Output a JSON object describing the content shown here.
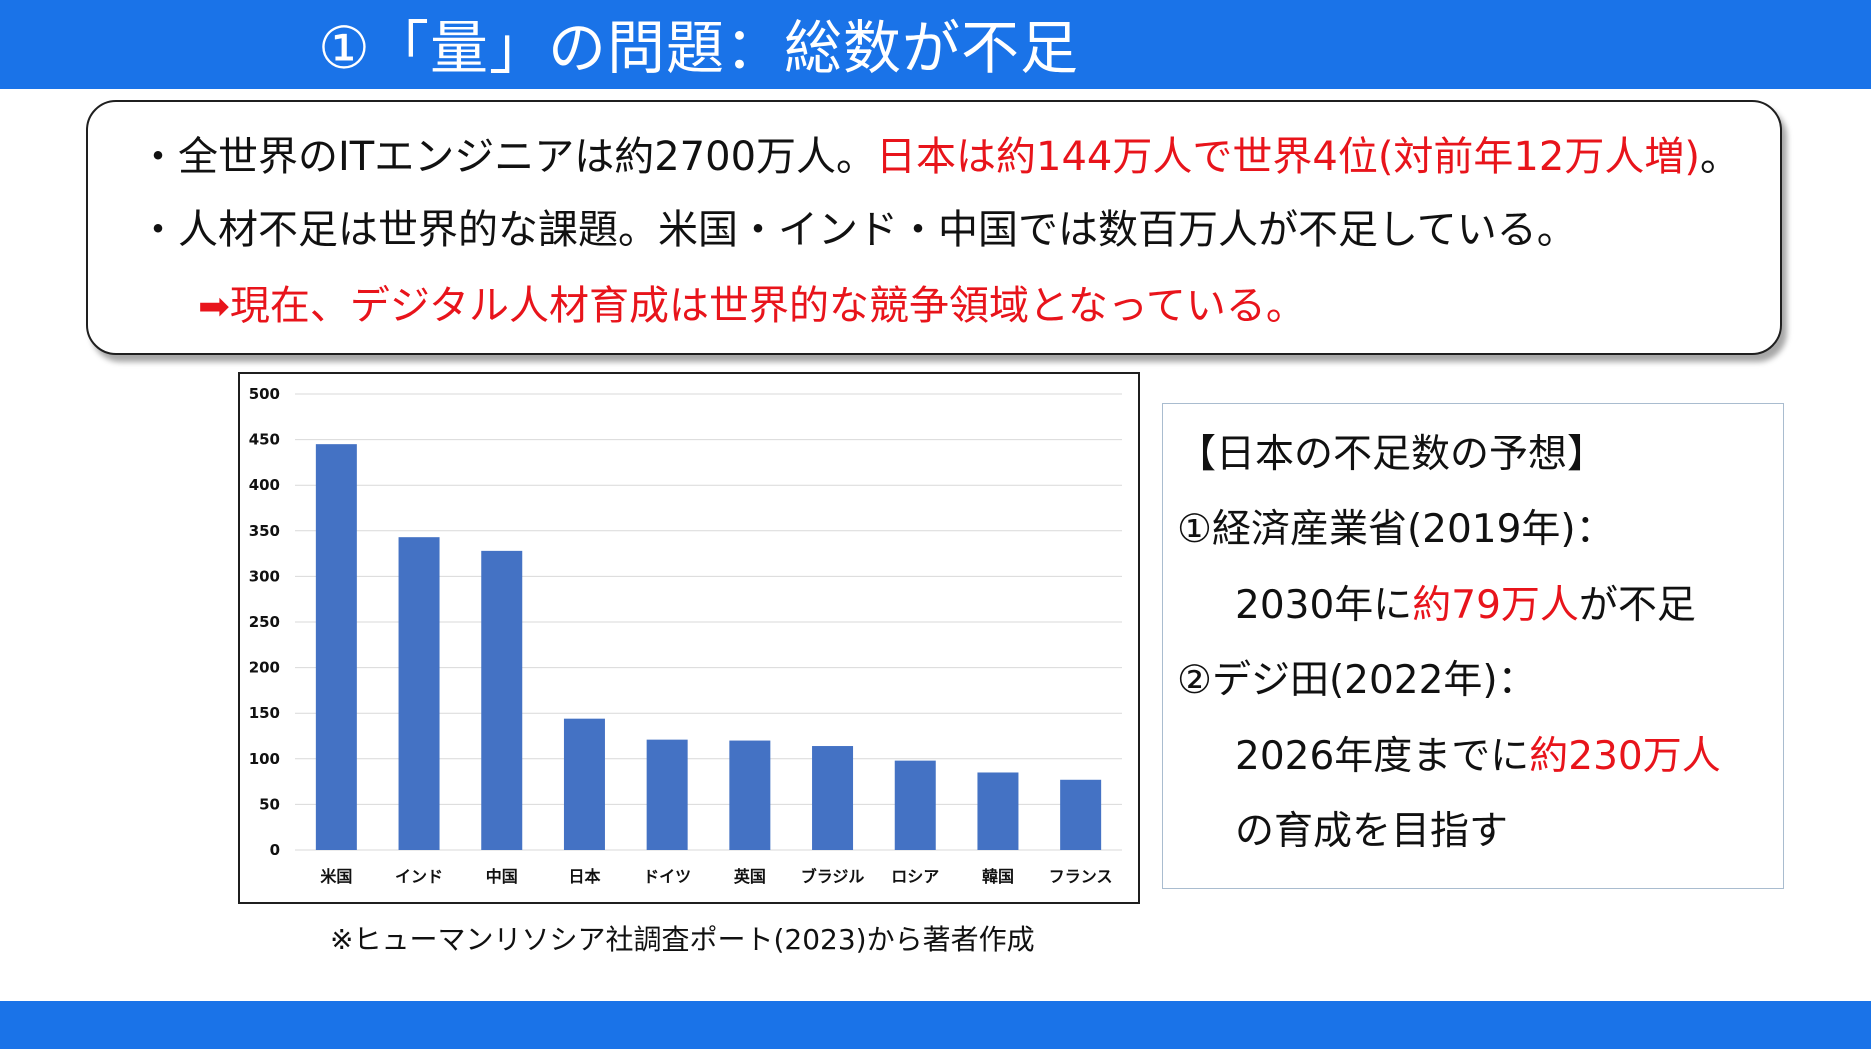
{
  "title": "①「量」の問題：総数が不足",
  "summary": {
    "line1_black": "・全世界のITエンジニアは約2700万人。",
    "line1_red": "日本は約144万人で世界4位(対前年12万人増)",
    "line1_end": "。",
    "line2": "・人材不足は世界的な課題。米国・インド・中国では数百万人が不足している。",
    "line3_arrow": "➡",
    "line3": "現在、デジタル人材育成は世界的な競争領域となっている。"
  },
  "chart_data": {
    "type": "bar",
    "categories": [
      "米国",
      "インド",
      "中国",
      "日本",
      "ドイツ",
      "英国",
      "ブラジル",
      "ロシア",
      "韓国",
      "フランス"
    ],
    "values": [
      445,
      343,
      328,
      144,
      121,
      120,
      114,
      98,
      85,
      77
    ],
    "ylim": [
      0,
      500
    ],
    "yticks": [
      "0",
      "50",
      "100",
      "150",
      "200",
      "250",
      "300",
      "350",
      "400",
      "450",
      "500"
    ],
    "grid": true,
    "bar_color": "#4472c4",
    "xlabel": "",
    "ylabel": "",
    "title": ""
  },
  "source_note": "※ヒューマンリソシア社調査ポート(2023)から著者作成",
  "forecast": {
    "heading": "【日本の不足数の予想】",
    "item1_label": "①経済産業省(2019年)：",
    "item1_prefix": "2030年に",
    "item1_red": "約79万人",
    "item1_suffix": "が不足",
    "item2_label": "②デジ田(2022年)：",
    "item2_prefix": "2026年度までに",
    "item2_red": "約230万人",
    "item2_suffix": "の育成を目指す"
  },
  "colors": {
    "header": "#1a73e8",
    "accent_red": "#e8141b",
    "bar": "#4472c4"
  }
}
